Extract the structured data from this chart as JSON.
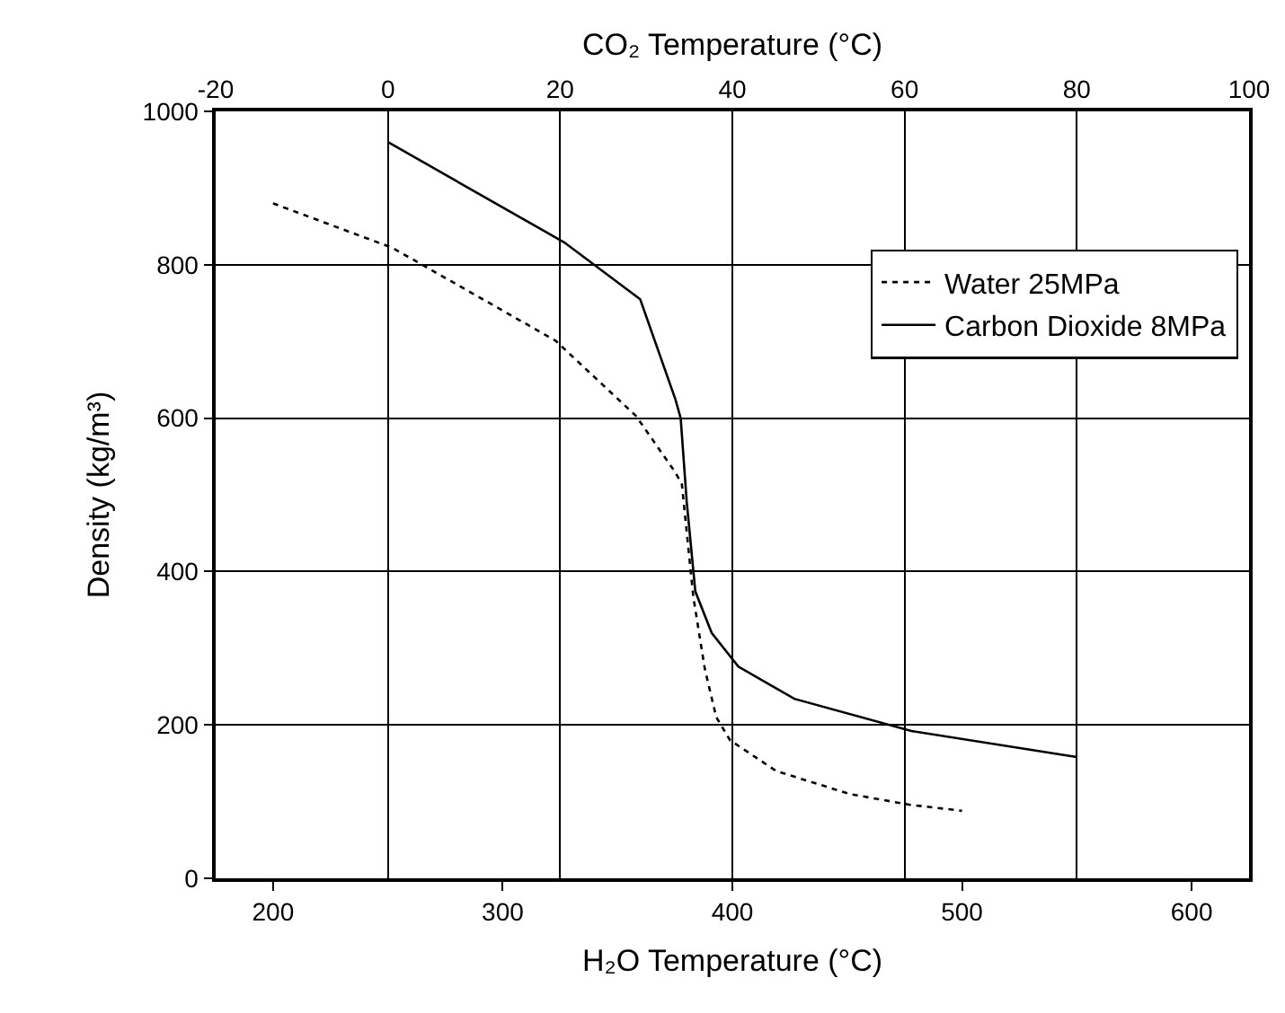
{
  "chart_data": {
    "type": "line",
    "xlabel": "H₂O Temperature (°C)",
    "x2label": "CO₂ Temperature (°C)",
    "ylabel": "Density (kg/m³)",
    "xlim": [
      175,
      625
    ],
    "xticks": [
      200,
      300,
      400,
      500,
      600
    ],
    "x2lim": [
      -20,
      100
    ],
    "x2ticks": [
      -20,
      0,
      20,
      40,
      60,
      80,
      100
    ],
    "ylim": [
      0,
      1000
    ],
    "yticks": [
      0,
      200,
      400,
      600,
      800,
      1000
    ],
    "grid": true,
    "legend": "top right",
    "marker": "none",
    "series": [
      {
        "name": "Water 25MPa",
        "color": "#000000",
        "line_style": "dotted",
        "x": [
          200,
          252,
          323,
          358,
          375,
          378,
          383,
          388,
          393,
          399,
          419,
          451,
          477,
          500
        ],
        "values": [
          880,
          822,
          701,
          603,
          530,
          514,
          367,
          273,
          210,
          180,
          140,
          110,
          96,
          88
        ]
      },
      {
        "name": "Carbon Dioxide 8MPa",
        "color": "#000000",
        "line_style": "solid",
        "axis": "x2",
        "x": [
          0,
          20.5,
          29.3,
          33.4,
          34,
          34.7,
          35.7,
          37.6,
          40.7,
          47.2,
          60.8,
          80
        ],
        "values": [
          960,
          829,
          755,
          624,
          600,
          491,
          374,
          320,
          276,
          234,
          192,
          158
        ]
      }
    ]
  }
}
